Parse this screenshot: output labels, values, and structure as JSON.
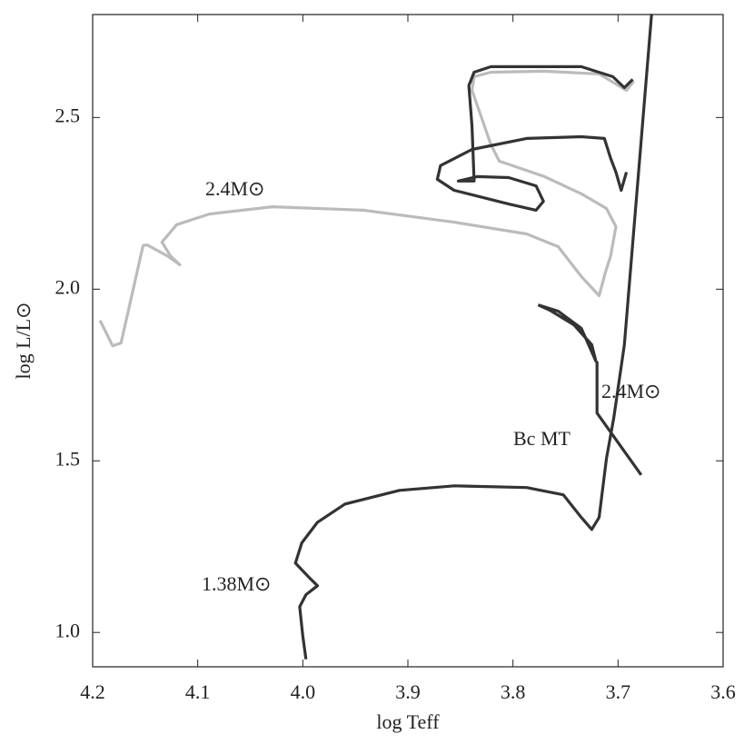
{
  "chart_data": {
    "type": "line",
    "xlabel": "log Teff",
    "ylabel": "log L/L⊙",
    "xlim": [
      4.2,
      3.6
    ],
    "xticks": [
      4.2,
      4.1,
      {
        "value": 4,
        "label": "4.0"
      },
      3.9,
      3.8,
      3.7,
      3.6
    ],
    "ylim": [
      0.9,
      2.8
    ],
    "yticks": [
      {
        "value": 1,
        "label": "1.0"
      },
      1.5,
      {
        "value": 2,
        "label": "2.0"
      },
      2.5
    ],
    "annotations": [
      "2.4M⊙",
      "2.4M⊙",
      "Bc MT",
      "1.38M⊙"
    ],
    "series": [
      {
        "color": "#bbbbbb",
        "x": [
          4.193,
          4.181,
          4.173,
          4.152,
          4.148,
          4.128,
          4.117,
          4.126,
          4.134,
          4.12,
          4.089,
          4.029,
          3.942,
          3.856,
          3.787,
          3.757,
          3.735,
          3.718,
          3.712,
          3.707,
          3.702,
          3.711,
          3.735,
          3.77,
          3.813,
          3.821,
          3.83,
          3.839,
          3.837,
          3.821,
          3.77,
          3.718,
          3.692,
          3.685
        ],
        "values": [
          1.909,
          1.835,
          1.843,
          2.127,
          2.129,
          2.095,
          2.071,
          2.097,
          2.137,
          2.188,
          2.219,
          2.24,
          2.23,
          2.195,
          2.161,
          2.124,
          2.037,
          1.981,
          2.05,
          2.097,
          2.182,
          2.235,
          2.278,
          2.328,
          2.373,
          2.421,
          2.5,
          2.579,
          2.619,
          2.632,
          2.635,
          2.627,
          2.579,
          2.606
        ]
      },
      {
        "color": "#333333",
        "x": [
          3.997,
          4.0,
          4.003,
          3.997,
          3.986,
          3.994,
          4.007,
          4.001,
          3.986,
          3.96,
          3.908,
          3.856,
          3.787,
          3.752,
          3.735,
          3.725,
          3.718,
          3.711,
          3.704,
          3.694,
          3.668
        ],
        "values": [
          0.922,
          0.99,
          1.075,
          1.11,
          1.136,
          1.16,
          1.202,
          1.261,
          1.321,
          1.374,
          1.414,
          1.427,
          1.422,
          1.401,
          1.335,
          1.3,
          1.335,
          1.507,
          1.626,
          1.838,
          2.802
        ]
      },
      {
        "color": "#333333",
        "x": [
          3.776,
          3.757,
          3.735,
          3.721,
          3.725,
          3.742,
          3.765,
          3.776,
          null,
          3.72,
          3.72,
          3.678
        ],
        "values": [
          1.954,
          1.936,
          1.886,
          1.79,
          1.838,
          1.896,
          1.939,
          1.954,
          null,
          1.79,
          1.639,
          1.459
        ]
      },
      {
        "color": "#333333",
        "x": [
          3.686,
          3.694,
          3.705,
          3.735,
          3.821,
          3.837,
          3.842,
          3.839,
          3.837,
          3.852,
          3.834,
          3.804,
          3.778,
          3.771,
          3.778,
          3.804,
          3.856,
          3.872,
          3.869,
          3.839,
          3.787,
          3.735,
          3.713,
          3.707,
          3.702,
          3.697,
          3.692
        ],
        "values": [
          2.611,
          2.587,
          2.619,
          2.648,
          2.648,
          2.632,
          2.593,
          2.474,
          2.315,
          2.315,
          2.328,
          2.325,
          2.301,
          2.256,
          2.23,
          2.248,
          2.288,
          2.32,
          2.36,
          2.407,
          2.439,
          2.444,
          2.439,
          2.381,
          2.341,
          2.288,
          2.341
        ]
      }
    ]
  }
}
